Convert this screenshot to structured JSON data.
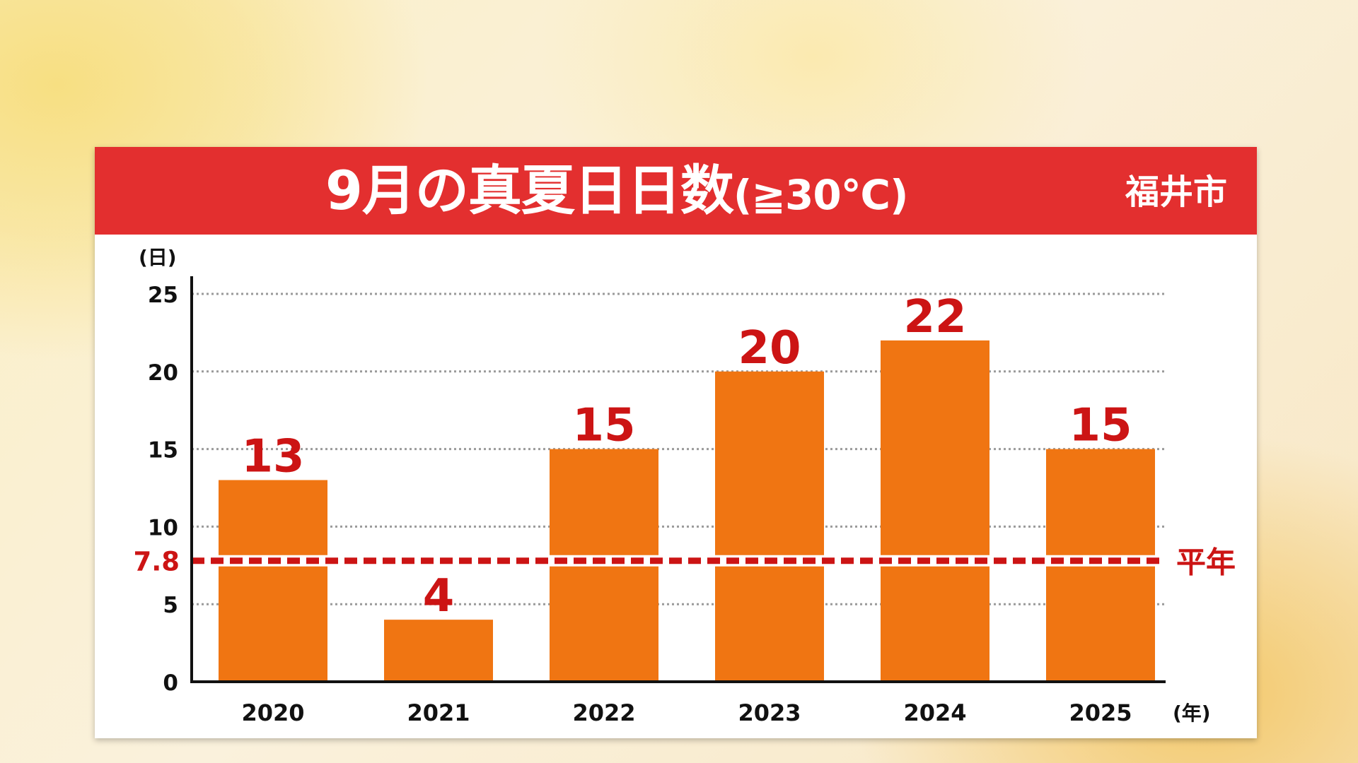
{
  "title": {
    "main": "9月の真夏日日数",
    "condition": "(≧30℃)",
    "location": "福井市"
  },
  "colors": {
    "title_bar": "#e32f2f",
    "bar": "#f07512",
    "accent_red": "#cc1414",
    "axis": "#111111",
    "grid": "#9a9a9a"
  },
  "chart_data": {
    "type": "bar",
    "title": "9月の真夏日日数(≧30℃)",
    "categories": [
      "2020",
      "2021",
      "2022",
      "2023",
      "2024",
      "2025"
    ],
    "values": [
      13,
      4,
      15,
      20,
      22,
      15
    ],
    "data_labels": [
      "13",
      "4",
      "15",
      "20",
      "22",
      "15"
    ],
    "ylabel": "(日)",
    "xlabel": "(年)",
    "ylim": [
      0,
      26
    ],
    "yticks": [
      0,
      5,
      10,
      15,
      20,
      25
    ],
    "grid": true,
    "reference_line": {
      "value": 7.8,
      "label": "7.8",
      "name": "平年"
    }
  }
}
